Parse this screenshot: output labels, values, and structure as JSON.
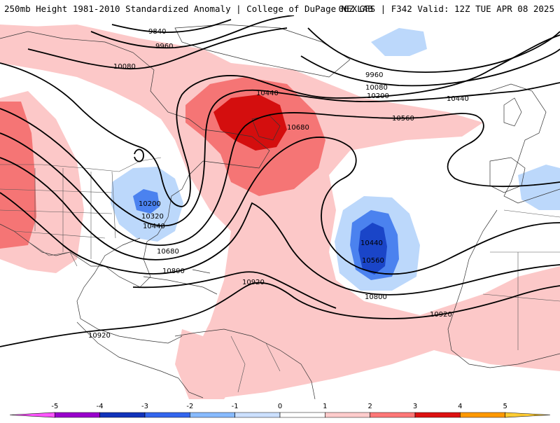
{
  "header": {
    "title_left": "250mb Height 1981-2010 Standardized Anomaly | College of DuPage NEXLAB",
    "title_right": "06Z GFS | F342 Valid: 12Z TUE APR 08 2025"
  },
  "contour_labels": [
    "9840",
    "9960",
    "10080",
    "10440",
    "10680",
    "9960",
    "10080",
    "10200",
    "10440",
    "10560",
    "10200",
    "10320",
    "10440",
    "10680",
    "10800",
    "10920",
    "10440",
    "10560",
    "10800",
    "10920",
    "10920"
  ],
  "colorbar": {
    "ticks": [
      "-5",
      "-4",
      "-3",
      "-2",
      "-1",
      "0",
      "1",
      "2",
      "3",
      "4",
      "5"
    ],
    "colors": [
      "#ff55ff",
      "#9900cc",
      "#1133bb",
      "#3366ee",
      "#88bbff",
      "#cce0ff",
      "#ffffff",
      "#ffcccc",
      "#ff7777",
      "#dd1111",
      "#ff9900",
      "#ffcc33"
    ]
  },
  "anomaly_colors": {
    "pos1": "#fcc8c8",
    "pos2": "#f57575",
    "pos3": "#d40e0e",
    "neg1": "#bcd8fb",
    "neg2": "#4b82ef",
    "neg3": "#1a45c8"
  }
}
